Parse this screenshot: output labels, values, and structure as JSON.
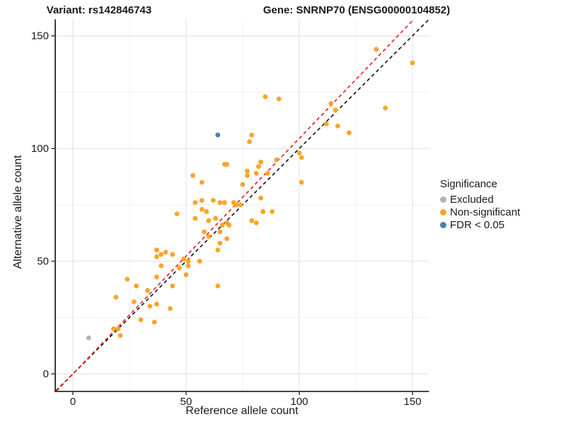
{
  "chart_data": {
    "type": "scatter",
    "title_left": "Variant: rs142846743",
    "title_right": "Gene: SNRNP70 (ENSG00000104852)",
    "xlabel": "Reference allele count",
    "ylabel": "Alternative allele count",
    "x_ticks": [
      0,
      50,
      100,
      150
    ],
    "y_ticks": [
      0,
      50,
      100,
      150
    ],
    "x_minor_ticks": [
      25,
      75,
      125
    ],
    "y_minor_ticks": [
      25,
      75,
      125
    ],
    "xlim": [
      -7.5,
      157.3
    ],
    "ylim": [
      -7.5,
      157.3
    ],
    "grid": {
      "major_color": "#e2e2e2",
      "minor_color": "#efefef"
    },
    "axis_color": "#2a2a2a",
    "legend": {
      "title": "Significance",
      "items": [
        {
          "label": "Excluded",
          "color": "#b3b3b3"
        },
        {
          "label": "Non-significant",
          "color": "#fda428"
        },
        {
          "label": "FDR < 0.05",
          "color": "#4682b4"
        }
      ]
    },
    "lines": [
      {
        "name": "identity-line",
        "slope": 1.0,
        "intercept": 0,
        "color": "#1a1a1a",
        "dash": "5,4",
        "width": 1.7
      },
      {
        "name": "fit-line",
        "slope": 1.045,
        "intercept": 0,
        "color": "#ee2222",
        "dash": "5,4",
        "width": 1.7
      }
    ],
    "series": [
      {
        "name": "Excluded",
        "color": "#b3b3b3",
        "points": [
          [
            7,
            16
          ]
        ]
      },
      {
        "name": "Non-significant",
        "color": "#fda428",
        "points": [
          [
            134,
            144
          ],
          [
            150,
            138
          ],
          [
            85,
            123
          ],
          [
            91,
            122
          ],
          [
            114,
            120
          ],
          [
            116,
            117
          ],
          [
            138,
            118
          ],
          [
            112,
            111
          ],
          [
            117,
            110
          ],
          [
            122,
            107
          ],
          [
            79,
            106
          ],
          [
            78,
            103
          ],
          [
            100,
            98
          ],
          [
            101,
            96
          ],
          [
            101,
            85
          ],
          [
            90,
            95
          ],
          [
            83,
            94
          ],
          [
            82,
            92
          ],
          [
            81,
            89
          ],
          [
            86,
            89
          ],
          [
            77,
            90
          ],
          [
            77,
            88
          ],
          [
            67,
            93
          ],
          [
            68,
            93
          ],
          [
            53,
            88
          ],
          [
            57,
            85
          ],
          [
            75,
            84
          ],
          [
            83,
            78
          ],
          [
            84,
            72
          ],
          [
            88,
            72
          ],
          [
            79,
            68
          ],
          [
            81,
            67
          ],
          [
            54,
            76
          ],
          [
            57,
            77
          ],
          [
            62,
            77
          ],
          [
            65,
            76
          ],
          [
            67,
            76
          ],
          [
            71,
            76
          ],
          [
            72,
            75
          ],
          [
            74,
            75
          ],
          [
            57,
            73
          ],
          [
            59,
            72
          ],
          [
            54,
            69
          ],
          [
            63,
            69
          ],
          [
            60,
            68
          ],
          [
            58,
            63
          ],
          [
            65,
            63
          ],
          [
            60,
            61
          ],
          [
            66,
            66
          ],
          [
            68,
            67
          ],
          [
            69,
            66
          ],
          [
            68,
            60
          ],
          [
            65,
            58
          ],
          [
            64,
            55
          ],
          [
            64,
            39
          ],
          [
            51,
            50
          ],
          [
            56,
            50
          ],
          [
            49,
            51
          ],
          [
            51,
            48
          ],
          [
            47,
            47
          ],
          [
            50,
            44
          ],
          [
            46,
            71
          ],
          [
            37,
            55
          ],
          [
            41,
            54
          ],
          [
            39,
            53
          ],
          [
            44,
            53
          ],
          [
            37,
            52
          ],
          [
            39,
            48
          ],
          [
            37,
            43
          ],
          [
            24,
            42
          ],
          [
            28,
            39
          ],
          [
            44,
            39
          ],
          [
            33,
            37
          ],
          [
            19,
            34
          ],
          [
            27,
            32
          ],
          [
            34,
            30
          ],
          [
            37,
            31
          ],
          [
            43,
            29
          ],
          [
            30,
            24
          ],
          [
            36,
            23
          ],
          [
            18,
            20
          ],
          [
            20,
            20
          ],
          [
            21,
            17
          ]
        ]
      },
      {
        "name": "FDR < 0.05",
        "color": "#4682b4",
        "points": [
          [
            64,
            106
          ]
        ]
      }
    ]
  }
}
